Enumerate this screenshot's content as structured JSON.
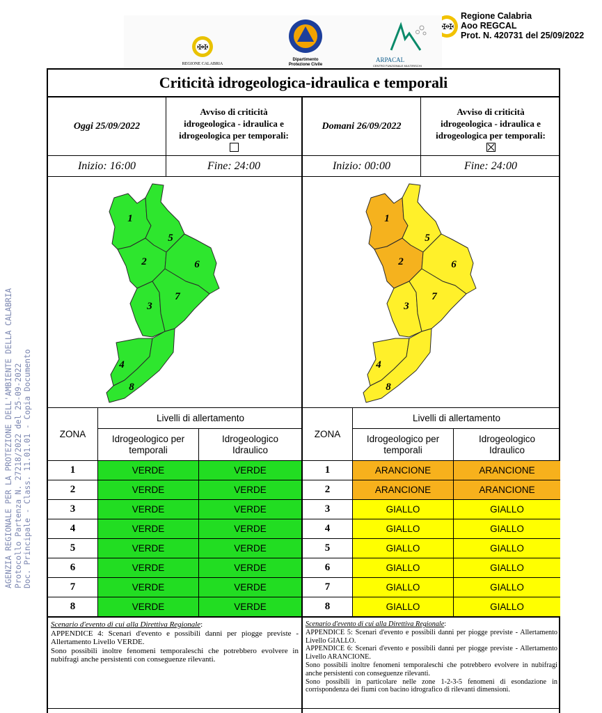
{
  "stamp": {
    "line1": "Regione Calabria",
    "line2": "Aoo REGCAL",
    "line3": "Prot. N. 420731 del 25/09/2022"
  },
  "side_text": {
    "line1": "AGENZIA REGIONALE PER LA PROTEZIONE DELL'AMBIENTE DELLA CALABRIA",
    "line2": "Protocollo Partenza N. 27218/2022 del 25-09-2022",
    "line3": "Doc. Principale - Class. 11.01.01 - Copia Documento"
  },
  "logos": {
    "regione": "REGIONE CALABRIA",
    "protezione_1": "Dipartimento",
    "protezione_2": "Protezione Civile",
    "arpacal": "ARPACAL",
    "arpacal_sub": "CENTRO FUNZIONALE MULTIRISCHI"
  },
  "title": "Criticità idrogeologica-idraulica e temporali",
  "days": [
    {
      "date": "Oggi 25/09/2022",
      "avviso": [
        "Avviso di criticità",
        "idrogeologica - idraulica e",
        "idrogeologica per temporali:"
      ],
      "checked": false,
      "inizio": "Inizio: 16:00",
      "fine": "Fine: 24:00",
      "zone_colors": [
        "#2ee62e",
        "#2ee62e",
        "#2ee62e",
        "#2ee62e",
        "#2ee62e",
        "#2ee62e",
        "#2ee62e",
        "#2ee62e"
      ],
      "rows": [
        {
          "zona": "1",
          "idro_temp": "VERDE",
          "idro_idra": "VERDE",
          "color": "#22dd22"
        },
        {
          "zona": "2",
          "idro_temp": "VERDE",
          "idro_idra": "VERDE",
          "color": "#22dd22"
        },
        {
          "zona": "3",
          "idro_temp": "VERDE",
          "idro_idra": "VERDE",
          "color": "#22dd22"
        },
        {
          "zona": "4",
          "idro_temp": "VERDE",
          "idro_idra": "VERDE",
          "color": "#22dd22"
        },
        {
          "zona": "5",
          "idro_temp": "VERDE",
          "idro_idra": "VERDE",
          "color": "#22dd22"
        },
        {
          "zona": "6",
          "idro_temp": "VERDE",
          "idro_idra": "VERDE",
          "color": "#22dd22"
        },
        {
          "zona": "7",
          "idro_temp": "VERDE",
          "idro_idra": "VERDE",
          "color": "#22dd22"
        },
        {
          "zona": "8",
          "idro_temp": "VERDE",
          "idro_idra": "VERDE",
          "color": "#22dd22"
        }
      ],
      "scenario": {
        "heading": "Scenario d'evento di cui alla Direttiva Regionale",
        "colon": ":",
        "p1": "APPENDICE 4: Scenari d'evento e possibili danni per piogge previste - Allertamento Livello VERDE.",
        "p2": "Sono possibili inoltre fenomeni temporaleschi che potrebbero evolvere in nubifragi anche persistenti con conseguenze rilevanti.",
        "p3": "",
        "p4": ""
      }
    },
    {
      "date": "Domani 26/09/2022",
      "avviso": [
        "Avviso di criticità",
        "idrogeologica - idraulica e",
        "idrogeologica per temporali:"
      ],
      "checked": true,
      "inizio": "Inizio: 00:00",
      "fine": "Fine: 24:00",
      "zone_colors": [
        "#f5b21e",
        "#f5b21e",
        "#fff02a",
        "#fff02a",
        "#fff02a",
        "#fff02a",
        "#fff02a",
        "#fff02a"
      ],
      "rows": [
        {
          "zona": "1",
          "idro_temp": "ARANCIONE",
          "idro_idra": "ARANCIONE",
          "color": "#f7b11c"
        },
        {
          "zona": "2",
          "idro_temp": "ARANCIONE",
          "idro_idra": "ARANCIONE",
          "color": "#f7b11c"
        },
        {
          "zona": "3",
          "idro_temp": "GIALLO",
          "idro_idra": "GIALLO",
          "color": "#ffff00"
        },
        {
          "zona": "4",
          "idro_temp": "GIALLO",
          "idro_idra": "GIALLO",
          "color": "#ffff00"
        },
        {
          "zona": "5",
          "idro_temp": "GIALLO",
          "idro_idra": "GIALLO",
          "color": "#ffff00"
        },
        {
          "zona": "6",
          "idro_temp": "GIALLO",
          "idro_idra": "GIALLO",
          "color": "#ffff00"
        },
        {
          "zona": "7",
          "idro_temp": "GIALLO",
          "idro_idra": "GIALLO",
          "color": "#ffff00"
        },
        {
          "zona": "8",
          "idro_temp": "GIALLO",
          "idro_idra": "GIALLO",
          "color": "#ffff00"
        }
      ],
      "scenario": {
        "heading": "Scenario d'evento di cui alla Direttiva Regionale",
        "colon": ":",
        "p1": "APPENDICE 5: Scenari d'evento e possibili danni per piogge previste - Allertamento Livello GIALLO.",
        "p2": "APPENDICE 6: Scenari d'evento e possibili danni per piogge previste - Allertamento Livello ARANCIONE.",
        "p3": "Sono possibili inoltre fenomeni temporaleschi che potrebbero evolvere in nubifragi anche persistenti con conseguenze rilevanti.",
        "p4": "Sono possibili in particolare nelle zone 1-2-3-5 fenomeni di esondazione in corrispondenza dei fiumi con bacino idrografico di rilevanti dimensioni."
      }
    }
  ],
  "table_headers": {
    "zona": "ZONA",
    "livelli": "Livelli di allertamento",
    "col1_a": "Idrogeologico per",
    "col1_b": "temporali",
    "col2_a": "Idrogeologico",
    "col2_b": "Idraulico"
  }
}
